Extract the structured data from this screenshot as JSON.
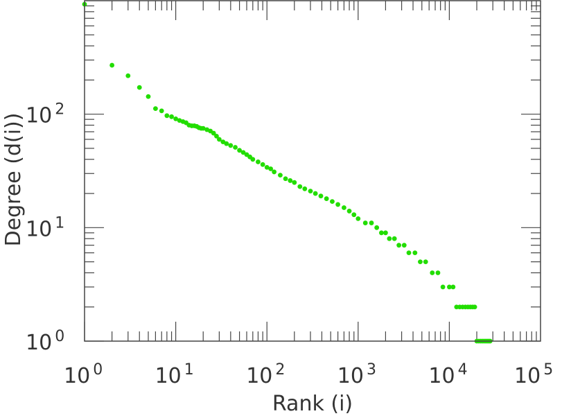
{
  "chart_data": {
    "type": "scatter",
    "xlabel": "Rank (i)",
    "ylabel": "Degree (d(i))",
    "x_scale": "log",
    "y_scale": "log",
    "xlim": [
      1,
      100000
    ],
    "ylim": [
      1,
      1000
    ],
    "grid": false,
    "legend": "none",
    "x_tick_labels": [
      {
        "base": "10",
        "exp": "0",
        "value": 1
      },
      {
        "base": "10",
        "exp": "1",
        "value": 10
      },
      {
        "base": "10",
        "exp": "2",
        "value": 100
      },
      {
        "base": "10",
        "exp": "3",
        "value": 1000
      },
      {
        "base": "10",
        "exp": "4",
        "value": 10000
      },
      {
        "base": "10",
        "exp": "5",
        "value": 100000
      }
    ],
    "y_tick_labels": [
      {
        "base": "10",
        "exp": "0",
        "value": 1
      },
      {
        "base": "10",
        "exp": "1",
        "value": 10
      },
      {
        "base": "10",
        "exp": "2",
        "value": 100
      }
    ],
    "colors": {
      "points": "#22dd00",
      "axis": "#444444"
    },
    "series": [
      {
        "points": [
          [
            1,
            930
          ],
          [
            2,
            270
          ],
          [
            3,
            218
          ],
          [
            4,
            172
          ],
          [
            5,
            143
          ],
          [
            6,
            112
          ],
          [
            7,
            107
          ],
          [
            8,
            97
          ],
          [
            9,
            95
          ],
          [
            10,
            91
          ],
          [
            11,
            88
          ],
          [
            12,
            86
          ],
          [
            13,
            84
          ],
          [
            14,
            80
          ],
          [
            15,
            79
          ],
          [
            16,
            79
          ],
          [
            17,
            78
          ],
          [
            18,
            76
          ],
          [
            19,
            75
          ],
          [
            20,
            75
          ],
          [
            22,
            73
          ],
          [
            24,
            71
          ],
          [
            26,
            68
          ],
          [
            28,
            64
          ],
          [
            30,
            60
          ],
          [
            33,
            57
          ],
          [
            36,
            55
          ],
          [
            40,
            53
          ],
          [
            45,
            51
          ],
          [
            50,
            48
          ],
          [
            55,
            46
          ],
          [
            60,
            44
          ],
          [
            65,
            42
          ],
          [
            70,
            40
          ],
          [
            80,
            38
          ],
          [
            90,
            36
          ],
          [
            100,
            34
          ],
          [
            110,
            33
          ],
          [
            120,
            31
          ],
          [
            140,
            29
          ],
          [
            160,
            27
          ],
          [
            180,
            26
          ],
          [
            200,
            25
          ],
          [
            230,
            23
          ],
          [
            260,
            22
          ],
          [
            300,
            21
          ],
          [
            340,
            20
          ],
          [
            390,
            19
          ],
          [
            450,
            18
          ],
          [
            520,
            17
          ],
          [
            600,
            16
          ],
          [
            700,
            15
          ],
          [
            800,
            14
          ],
          [
            900,
            13
          ],
          [
            1000,
            12
          ],
          [
            1200,
            11
          ],
          [
            1400,
            11
          ],
          [
            1600,
            10
          ],
          [
            1800,
            9
          ],
          [
            2000,
            9
          ],
          [
            2200,
            8
          ],
          [
            2500,
            8
          ],
          [
            2800,
            7
          ],
          [
            3200,
            7
          ],
          [
            3600,
            6
          ],
          [
            4200,
            6
          ],
          [
            4800,
            5
          ],
          [
            5500,
            5
          ],
          [
            6500,
            4
          ],
          [
            7500,
            4
          ],
          [
            8500,
            3
          ],
          [
            10000,
            3
          ],
          [
            11000,
            3
          ],
          [
            12000,
            2
          ],
          [
            13000,
            2
          ],
          [
            14000,
            2
          ],
          [
            15000,
            2
          ],
          [
            16000,
            2
          ],
          [
            17000,
            2
          ],
          [
            18000,
            2
          ],
          [
            19000,
            2
          ],
          [
            20000,
            1
          ],
          [
            21000,
            1
          ],
          [
            22000,
            1
          ],
          [
            23000,
            1
          ],
          [
            24000,
            1
          ],
          [
            25000,
            1
          ],
          [
            26000,
            1
          ],
          [
            27000,
            1
          ],
          [
            28000,
            1
          ]
        ]
      }
    ]
  }
}
